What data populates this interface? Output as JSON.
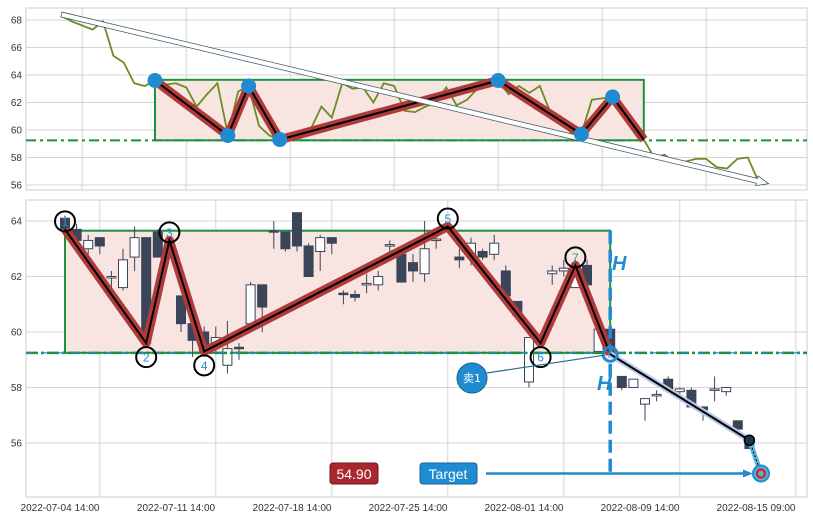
{
  "colors": {
    "close_line": "#6b8e23",
    "zigzag_outer": "#b03a3a",
    "zigzag_inner": "#000000",
    "marker": "#1f8bd0",
    "rect_fill": "#f8e4e0",
    "rect_stroke": "#1e9140",
    "support_line": "#1e9140",
    "bear_candle": "#3b4559",
    "accent_blue": "#1f8bd0",
    "price_badge": "#a8282e"
  },
  "chart_data": [
    {
      "type": "line",
      "panel": "top",
      "ylim": [
        55.5,
        68.8
      ],
      "yticks": [
        56,
        58,
        60,
        62,
        64,
        66,
        68
      ],
      "grid": true,
      "x_index_start": -9,
      "close": [
        68.3,
        67.9,
        67.6,
        67.3,
        67.9,
        65.4,
        64.9,
        63.4,
        63.2,
        63.6,
        63.3,
        63.4,
        63.1,
        61.7,
        62.6,
        63.4,
        59.7,
        62.8,
        63.2,
        60.3,
        59.6,
        59.3,
        59.6,
        59.4,
        60.1,
        61.7,
        60.9,
        63.4,
        63.0,
        63.1,
        62.0,
        63.4,
        63.2,
        61.4,
        61.3,
        61.7,
        62.0,
        63.1,
        61.8,
        62.2,
        63.0,
        63.3,
        63.6,
        62.6,
        63.2,
        62.7,
        63.2,
        61.3,
        60.6,
        59.8,
        59.7,
        62.2,
        62.3,
        62.4,
        61.7,
        60.1,
        59.3,
        58.0,
        58.2,
        57.6,
        57.7,
        57.9,
        57.9,
        57.3,
        57.2,
        57.9,
        58.0,
        56.3
      ],
      "zigzag": [
        {
          "i": 0,
          "v": 63.6
        },
        {
          "i": 7,
          "v": 59.6
        },
        {
          "i": 9,
          "v": 63.2
        },
        {
          "i": 12,
          "v": 59.3
        },
        {
          "i": 33,
          "v": 63.6
        },
        {
          "i": 41,
          "v": 59.7
        },
        {
          "i": 44,
          "v": 62.4
        },
        {
          "i": 47,
          "v": 59.3
        }
      ],
      "markers": [
        0,
        7,
        9,
        12,
        33,
        41,
        44
      ],
      "rectangle": {
        "i0": 0,
        "i1": 47,
        "low": 59.25,
        "high": 63.65
      },
      "support": 59.25,
      "trend_arrow": {
        "from": {
          "i": -9,
          "v": 68.4
        },
        "to": {
          "i": 59,
          "v": 56.1
        }
      }
    },
    {
      "type": "candlestick",
      "panel": "bottom",
      "ylim": [
        54.2,
        64.8
      ],
      "yticks": [
        56,
        58,
        60,
        62,
        64
      ],
      "grid": true,
      "xtick_labels": [
        "2022-07-04 14:00",
        "2022-07-11 14:00",
        "2022-07-18 14:00",
        "2022-07-25 14:00",
        "2022-08-01 14:00",
        "2022-08-09 14:00",
        "2022-08-15 09:00"
      ],
      "candles": [
        {
          "i": 0,
          "o": 64.1,
          "h": 64.2,
          "l": 63.6,
          "c": 63.7
        },
        {
          "i": 1,
          "o": 63.7,
          "h": 63.9,
          "l": 63.2,
          "c": 63.3
        },
        {
          "i": 2,
          "o": 63.0,
          "h": 63.5,
          "l": 62.8,
          "c": 63.3
        },
        {
          "i": 3,
          "o": 63.4,
          "h": 63.4,
          "l": 62.8,
          "c": 63.1
        },
        {
          "i": 4,
          "o": 62.0,
          "h": 62.2,
          "l": 61.6,
          "c": 62.0
        },
        {
          "i": 5,
          "o": 61.6,
          "h": 63.0,
          "l": 61.5,
          "c": 62.6
        },
        {
          "i": 6,
          "o": 62.7,
          "h": 63.8,
          "l": 62.2,
          "c": 63.4
        },
        {
          "i": 7,
          "o": 63.4,
          "h": 63.4,
          "l": 59.5,
          "c": 59.6
        },
        {
          "i": 8,
          "o": 63.6,
          "h": 63.7,
          "l": 62.7,
          "c": 62.7
        },
        {
          "i": 10,
          "o": 61.3,
          "h": 61.3,
          "l": 60.0,
          "c": 60.3
        },
        {
          "i": 11,
          "o": 60.3,
          "h": 60.3,
          "l": 59.1,
          "c": 59.7
        },
        {
          "i": 12,
          "o": 60.0,
          "h": 60.2,
          "l": 59.1,
          "c": 59.3
        },
        {
          "i": 13,
          "o": 59.5,
          "h": 60.2,
          "l": 59.2,
          "c": 59.8
        },
        {
          "i": 14,
          "o": 58.8,
          "h": 60.4,
          "l": 58.5,
          "c": 59.4
        },
        {
          "i": 15,
          "o": 59.45,
          "h": 59.6,
          "l": 59.0,
          "c": 59.4
        },
        {
          "i": 16,
          "o": 60.3,
          "h": 61.8,
          "l": 60.3,
          "c": 61.7
        },
        {
          "i": 17,
          "o": 61.7,
          "h": 61.7,
          "l": 60.0,
          "c": 60.9
        },
        {
          "i": 18,
          "o": 63.65,
          "h": 64.0,
          "l": 63.0,
          "c": 63.6
        },
        {
          "i": 19,
          "o": 63.6,
          "h": 63.6,
          "l": 62.9,
          "c": 63.0
        },
        {
          "i": 20,
          "o": 64.3,
          "h": 64.3,
          "l": 62.9,
          "c": 63.1
        },
        {
          "i": 21,
          "o": 63.1,
          "h": 63.2,
          "l": 62.0,
          "c": 62.0
        },
        {
          "i": 22,
          "o": 62.9,
          "h": 63.5,
          "l": 62.2,
          "c": 63.4
        },
        {
          "i": 23,
          "o": 63.4,
          "h": 63.4,
          "l": 62.8,
          "c": 63.2
        },
        {
          "i": 24,
          "o": 61.4,
          "h": 61.5,
          "l": 61.0,
          "c": 61.35
        },
        {
          "i": 25,
          "o": 61.35,
          "h": 61.5,
          "l": 61.1,
          "c": 61.25
        },
        {
          "i": 26,
          "o": 61.7,
          "h": 62.1,
          "l": 61.4,
          "c": 61.75
        },
        {
          "i": 27,
          "o": 61.7,
          "h": 62.2,
          "l": 61.5,
          "c": 62.0
        },
        {
          "i": 28,
          "o": 63.1,
          "h": 63.3,
          "l": 62.8,
          "c": 63.15
        },
        {
          "i": 29,
          "o": 62.8,
          "h": 63.0,
          "l": 61.8,
          "c": 61.8
        },
        {
          "i": 30,
          "o": 62.5,
          "h": 62.8,
          "l": 61.8,
          "c": 62.2
        },
        {
          "i": 31,
          "o": 62.1,
          "h": 64.0,
          "l": 61.8,
          "c": 63.0
        },
        {
          "i": 32,
          "o": 63.3,
          "h": 63.6,
          "l": 63.0,
          "c": 63.35
        },
        {
          "i": 34,
          "o": 62.7,
          "h": 63.0,
          "l": 62.3,
          "c": 62.6
        },
        {
          "i": 35,
          "o": 62.8,
          "h": 63.4,
          "l": 62.4,
          "c": 63.2
        },
        {
          "i": 36,
          "o": 62.9,
          "h": 63.0,
          "l": 62.6,
          "c": 62.7
        },
        {
          "i": 37,
          "o": 62.8,
          "h": 63.5,
          "l": 62.6,
          "c": 63.2
        },
        {
          "i": 38,
          "o": 62.2,
          "h": 62.4,
          "l": 61.3,
          "c": 61.3
        },
        {
          "i": 39,
          "o": 61.1,
          "h": 61.1,
          "l": 60.6,
          "c": 60.6
        },
        {
          "i": 40,
          "o": 58.2,
          "h": 59.8,
          "l": 58.0,
          "c": 59.8
        },
        {
          "i": 42,
          "o": 62.1,
          "h": 62.4,
          "l": 61.7,
          "c": 62.2
        },
        {
          "i": 43,
          "o": 62.2,
          "h": 62.6,
          "l": 62.0,
          "c": 62.3
        },
        {
          "i": 44,
          "o": 61.6,
          "h": 62.6,
          "l": 61.6,
          "c": 62.0
        },
        {
          "i": 45,
          "o": 62.4,
          "h": 62.6,
          "l": 61.7,
          "c": 61.7
        },
        {
          "i": 46,
          "o": 59.3,
          "h": 60.1,
          "l": 59.3,
          "c": 60.1
        },
        {
          "i": 47,
          "o": 60.1,
          "h": 60.1,
          "l": 59.3,
          "c": 59.3
        },
        {
          "i": 48,
          "o": 58.4,
          "h": 58.4,
          "l": 57.9,
          "c": 58.0
        },
        {
          "i": 49,
          "o": 58.0,
          "h": 58.3,
          "l": 58.0,
          "c": 58.3
        },
        {
          "i": 50,
          "o": 57.4,
          "h": 57.6,
          "l": 56.8,
          "c": 57.6
        },
        {
          "i": 51,
          "o": 57.7,
          "h": 57.9,
          "l": 57.5,
          "c": 57.75
        },
        {
          "i": 52,
          "o": 58.3,
          "h": 58.4,
          "l": 57.9,
          "c": 57.9
        },
        {
          "i": 53,
          "o": 57.85,
          "h": 58.0,
          "l": 57.7,
          "c": 57.95
        },
        {
          "i": 54,
          "o": 57.9,
          "h": 58.0,
          "l": 57.3,
          "c": 57.3
        },
        {
          "i": 55,
          "o": 57.3,
          "h": 57.3,
          "l": 56.8,
          "c": 57.2
        },
        {
          "i": 56,
          "o": 57.9,
          "h": 58.4,
          "l": 57.5,
          "c": 57.95
        },
        {
          "i": 57,
          "o": 57.85,
          "h": 58.0,
          "l": 57.7,
          "c": 58.0
        },
        {
          "i": 58,
          "o": 56.8,
          "h": 56.8,
          "l": 56.5,
          "c": 56.5
        },
        {
          "i": 59,
          "o": 56.1,
          "h": 56.3,
          "l": 55.8,
          "c": 55.8
        }
      ],
      "zigzag": [
        {
          "i": 0,
          "v": 63.7,
          "label": "1"
        },
        {
          "i": 7,
          "v": 59.6,
          "label": "2"
        },
        {
          "i": 9,
          "v": 63.3,
          "label": "3"
        },
        {
          "i": 12,
          "v": 59.3,
          "label": "4"
        },
        {
          "i": 33,
          "v": 63.8,
          "label": "5"
        },
        {
          "i": 41,
          "v": 59.6,
          "label": "6"
        },
        {
          "i": 44,
          "v": 62.4,
          "label": "7"
        },
        {
          "i": 47,
          "v": 59.2,
          "label": ""
        }
      ],
      "rectangle": {
        "i0": 0,
        "i1": 47,
        "low": 59.25,
        "high": 63.65
      },
      "support": 59.25,
      "projection": [
        {
          "i": 47,
          "v": 59.2
        },
        {
          "i": 59,
          "v": 56.1
        },
        {
          "i": 60,
          "v": 54.9
        }
      ],
      "height_label": "H",
      "sell_label": "卖1",
      "target_label": "Target",
      "target_price": "54.90"
    }
  ]
}
